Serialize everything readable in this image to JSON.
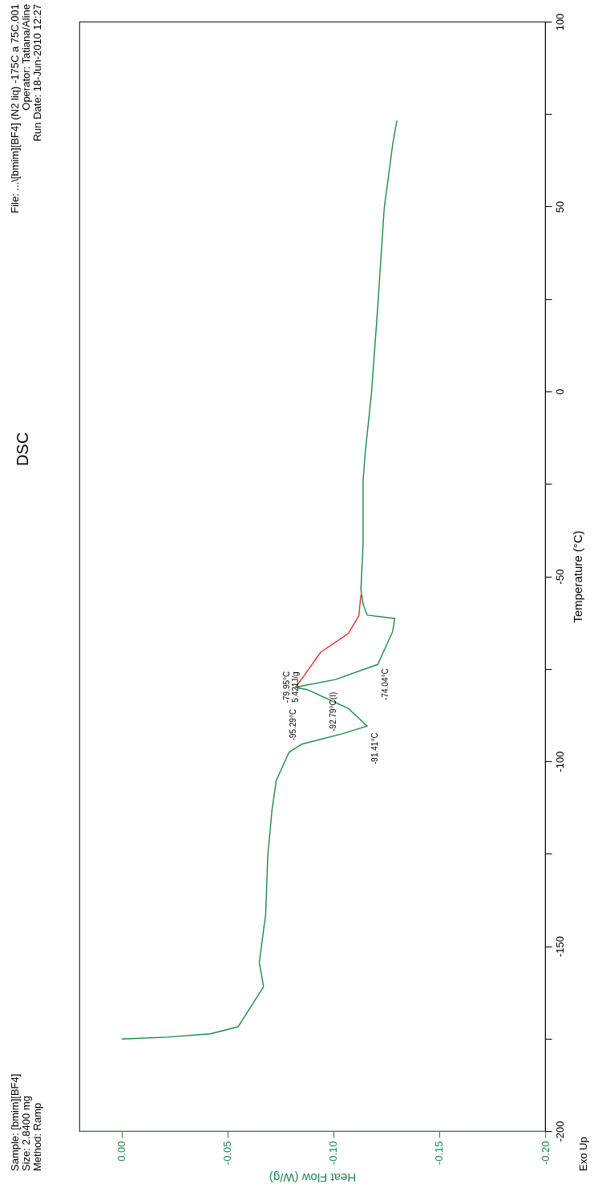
{
  "chart_data": {
    "type": "line",
    "title": "DSC",
    "xlabel": "Heat Flow (W/g)",
    "ylabel": "Temperature (°C)",
    "xlim": [
      0.02,
      -0.2
    ],
    "xticks": [
      {
        "value": 0,
        "label": "0.00"
      },
      {
        "value": -0.05,
        "label": "-0.05"
      },
      {
        "value": -0.1,
        "label": "-0.10"
      },
      {
        "value": -0.15,
        "label": "-0.15"
      },
      {
        "value": -0.2,
        "label": "-0.20"
      }
    ],
    "ylim": [
      -200,
      100
    ],
    "yticks": [
      -200,
      {
        "value": -175,
        "label": null
      },
      -150,
      {
        "value": -125,
        "label": null
      },
      -100,
      {
        "value": -75,
        "label": null
      },
      -50,
      {
        "value": -25,
        "label": null
      },
      0,
      {
        "value": 25,
        "label": null
      },
      50,
      {
        "value": 75,
        "label": null
      },
      100
    ],
    "grid": false,
    "marker": "none",
    "line_style": "solid",
    "series": [
      {
        "color": "#1a8a4a",
        "x": [
          0,
          -0.022,
          -0.042,
          -0.055,
          -0.067,
          -0.065,
          -0.068,
          -0.069,
          -0.071,
          -0.073,
          -0.079,
          -0.085,
          -0.104,
          -0.116,
          -0.107,
          -0.088,
          -0.082,
          -0.101,
          -0.121,
          -0.128,
          -0.129,
          -0.116,
          -0.114,
          -0.113,
          -0.114,
          -0.114,
          -0.115,
          -0.118,
          -0.121,
          -0.124,
          -0.128,
          -0.13
        ],
        "values": [
          -175.1,
          -174.6,
          -173.7,
          -171.8,
          -161,
          -154.4,
          -141.4,
          -125.6,
          -113.2,
          -105.2,
          -97.6,
          -95.4,
          -92.6,
          -90.5,
          -85.7,
          -80.7,
          -80.0,
          -77.9,
          -73.8,
          -64.9,
          -61.4,
          -60.5,
          -57.5,
          -53.6,
          -41.6,
          -24.3,
          -16.7,
          -0.4,
          23.4,
          49.5,
          66.8,
          73.3
        ]
      },
      {
        "color": "#e83030",
        "x": [
          -0.082,
          -0.086,
          -0.094,
          -0.107,
          -0.112,
          -0.113
        ],
        "values": [
          -80.0,
          -77,
          -70.5,
          -65.5,
          -60.7,
          -55
        ]
      }
    ],
    "annotations": [
      "Sample: [bmim][BF4]\nSize:  2.8400 mg\nMethod: Ramp",
      "File: ...\\[bmim][BF4] (N2 liq) -175C a 75C.001\nOperator: Tatiana/Aline\nRun Date: 18-Jun-2010 12:27",
      "Exo Up",
      {
        "text": "-95.29°C",
        "x": -0.085,
        "y": -95.29
      },
      {
        "text": "-92.79°C(I)",
        "x": -0.104,
        "y": -92.79
      },
      {
        "text": "-91.41°C",
        "x": -0.116,
        "y": -91.41
      },
      {
        "text": "-79.95°C\n5.421J/g",
        "x": -0.082,
        "y": -79.95
      },
      {
        "text": "-74.04°C",
        "x": -0.121,
        "y": -74.04
      }
    ]
  }
}
